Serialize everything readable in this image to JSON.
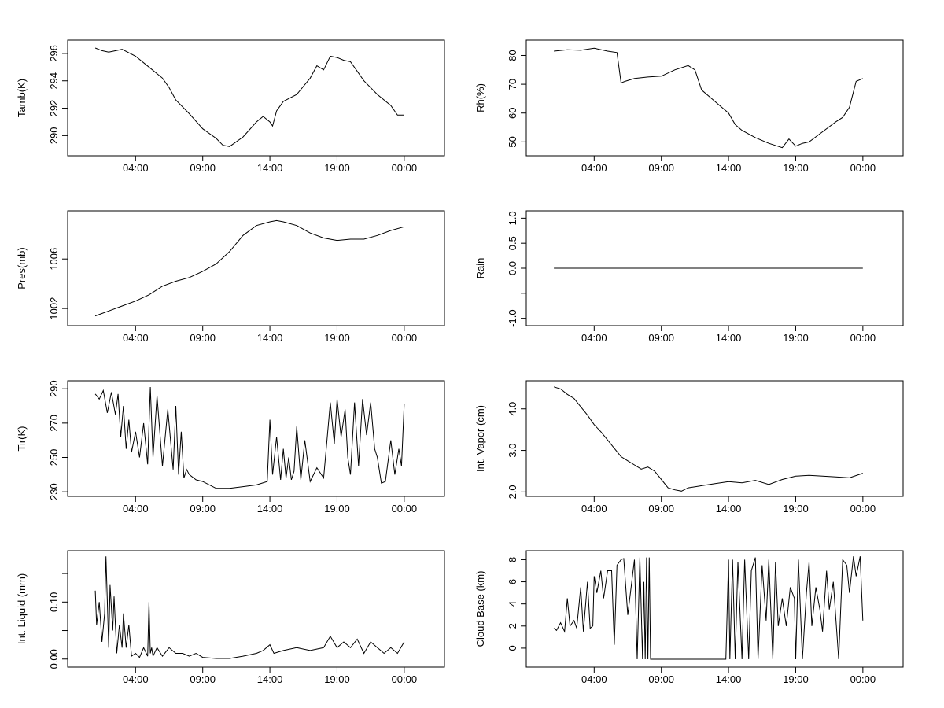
{
  "figure_title": "",
  "chart_data": [
    {
      "type": "line",
      "id": "tamb",
      "ylabel": "Tamb(K)",
      "xlabel": "",
      "xlim": [
        0,
        26
      ],
      "ylim": [
        288.7,
        296.8
      ],
      "yticks": [
        290,
        292,
        294,
        296
      ],
      "ytick_labels": [
        "290",
        "292",
        "294",
        "296"
      ],
      "xticks": [
        4,
        9,
        14,
        19,
        24
      ],
      "xtick_labels": [
        "04:00",
        "09:00",
        "14:00",
        "19:00",
        "00:00"
      ],
      "x": [
        1.0,
        1.5,
        2.0,
        3.0,
        4.0,
        5.0,
        6.0,
        6.5,
        7.0,
        8.0,
        9.0,
        10.0,
        10.5,
        11.0,
        12.0,
        13.0,
        13.5,
        14.0,
        14.2,
        14.5,
        15.0,
        16.0,
        17.0,
        17.5,
        18.0,
        18.5,
        19.0,
        19.5,
        20.0,
        20.5,
        21.0,
        22.0,
        23.0,
        23.5,
        24.0
      ],
      "y": [
        296.4,
        296.2,
        296.1,
        296.3,
        295.8,
        295.0,
        294.2,
        293.5,
        292.6,
        291.6,
        290.5,
        289.8,
        289.3,
        289.2,
        289.9,
        291.0,
        291.4,
        291.0,
        290.7,
        291.8,
        292.5,
        293.0,
        294.2,
        295.1,
        294.8,
        295.8,
        295.7,
        295.5,
        295.4,
        294.7,
        294.0,
        293.0,
        292.2,
        291.5,
        291.5
      ]
    },
    {
      "type": "line",
      "id": "rh",
      "ylabel": "Rh(%)",
      "xlabel": "",
      "xlim": [
        0,
        26
      ],
      "ylim": [
        46.0,
        84.5
      ],
      "yticks": [
        50,
        60,
        70,
        80
      ],
      "ytick_labels": [
        "50",
        "60",
        "70",
        "80"
      ],
      "xticks": [
        4,
        9,
        14,
        19,
        24
      ],
      "xtick_labels": [
        "04:00",
        "09:00",
        "14:00",
        "19:00",
        "00:00"
      ],
      "x": [
        1.0,
        2.0,
        3.0,
        4.0,
        5.0,
        5.7,
        6.0,
        6.3,
        7.0,
        8.0,
        9.0,
        10.0,
        11.0,
        11.5,
        12.0,
        13.0,
        14.0,
        14.5,
        15.0,
        16.0,
        17.0,
        18.0,
        18.5,
        19.0,
        19.5,
        20.0,
        21.0,
        22.0,
        22.5,
        23.0,
        23.5,
        24.0
      ],
      "y": [
        81.5,
        82.0,
        81.8,
        82.5,
        81.5,
        81.0,
        70.5,
        71.0,
        72.0,
        72.5,
        72.8,
        75.0,
        76.5,
        75.0,
        68.0,
        64.0,
        60.0,
        56.0,
        54.0,
        51.5,
        49.5,
        48.0,
        51.0,
        48.5,
        49.5,
        50.0,
        53.5,
        57.0,
        58.5,
        62.0,
        71.0,
        72.0
      ]
    },
    {
      "type": "line",
      "id": "pres",
      "ylabel": "Pres(mb)",
      "xlabel": "",
      "xlim": [
        0,
        26
      ],
      "ylim": [
        1000.8,
        1009.7
      ],
      "yticks": [
        1002,
        1006
      ],
      "ytick_labels": [
        "1002",
        "1006"
      ],
      "xticks": [
        4,
        9,
        14,
        19,
        24
      ],
      "xtick_labels": [
        "04:00",
        "09:00",
        "14:00",
        "19:00",
        "00:00"
      ],
      "x": [
        1.0,
        2.0,
        3.0,
        4.0,
        5.0,
        6.0,
        7.0,
        8.0,
        9.0,
        10.0,
        11.0,
        12.0,
        13.0,
        14.0,
        14.5,
        15.0,
        16.0,
        17.0,
        18.0,
        19.0,
        20.0,
        21.0,
        22.0,
        23.0,
        24.0
      ],
      "y": [
        1001.4,
        1001.8,
        1002.2,
        1002.6,
        1003.1,
        1003.8,
        1004.2,
        1004.5,
        1005.0,
        1005.6,
        1006.6,
        1007.9,
        1008.7,
        1009.0,
        1009.1,
        1009.0,
        1008.7,
        1008.1,
        1007.7,
        1007.5,
        1007.6,
        1007.6,
        1007.9,
        1008.3,
        1008.6
      ]
    },
    {
      "type": "line",
      "id": "rain",
      "ylabel": "Rain",
      "xlabel": "",
      "xlim": [
        0,
        26
      ],
      "ylim": [
        -1.1,
        1.1
      ],
      "yticks": [
        -1.0,
        -0.5,
        0.0,
        0.5,
        1.0
      ],
      "ytick_labels": [
        "-1.0",
        "",
        "0.0",
        "0.5",
        "1.0"
      ],
      "xticks": [
        4,
        9,
        14,
        19,
        24
      ],
      "xtick_labels": [
        "04:00",
        "09:00",
        "14:00",
        "19:00",
        "00:00"
      ],
      "x": [
        1.0,
        24.0
      ],
      "y": [
        0.0,
        0.0
      ]
    },
    {
      "type": "line",
      "id": "tir",
      "ylabel": "Tir(K)",
      "xlabel": "",
      "xlim": [
        0,
        26
      ],
      "ylim": [
        228.7,
        293.3
      ],
      "yticks": [
        230,
        250,
        270,
        290
      ],
      "ytick_labels": [
        "230",
        "250",
        "270",
        "290"
      ],
      "xticks": [
        4,
        9,
        14,
        19,
        24
      ],
      "xtick_labels": [
        "04:00",
        "09:00",
        "14:00",
        "19:00",
        "00:00"
      ],
      "x": [
        1.0,
        1.3,
        1.6,
        1.9,
        2.2,
        2.5,
        2.7,
        2.9,
        3.1,
        3.3,
        3.5,
        3.7,
        4.0,
        4.3,
        4.6,
        4.9,
        5.1,
        5.3,
        5.6,
        6.0,
        6.4,
        6.8,
        7.0,
        7.2,
        7.4,
        7.6,
        7.8,
        8.0,
        8.5,
        9.0,
        10.0,
        11.0,
        12.0,
        13.0,
        13.8,
        14.0,
        14.2,
        14.5,
        14.8,
        15.0,
        15.2,
        15.4,
        15.6,
        15.8,
        16.0,
        16.3,
        16.6,
        17.0,
        17.5,
        18.0,
        18.5,
        18.8,
        19.0,
        19.3,
        19.6,
        19.8,
        20.0,
        20.3,
        20.6,
        20.9,
        21.2,
        21.5,
        21.8,
        22.0,
        22.3,
        22.6,
        23.0,
        23.3,
        23.6,
        23.8,
        24.0
      ],
      "y": [
        287,
        284,
        289,
        276,
        288,
        275,
        287,
        262,
        280,
        255,
        272,
        253,
        265,
        250,
        270,
        246,
        291,
        250,
        286,
        245,
        278,
        243,
        280,
        240,
        265,
        238,
        243,
        240,
        237,
        236,
        232,
        232,
        233,
        234,
        236,
        272,
        240,
        262,
        237,
        255,
        238,
        250,
        237,
        242,
        268,
        237,
        260,
        236,
        244,
        238,
        282,
        258,
        284,
        262,
        278,
        250,
        240,
        282,
        245,
        284,
        263,
        282,
        255,
        250,
        235,
        236,
        260,
        240,
        255,
        245,
        281
      ]
    },
    {
      "type": "line",
      "id": "vapor",
      "ylabel": "Int. Vapor (cm)",
      "xlabel": "",
      "xlim": [
        0,
        26
      ],
      "ylim": [
        1.95,
        4.62
      ],
      "yticks": [
        2.0,
        3.0,
        4.0
      ],
      "ytick_labels": [
        "2.0",
        "3.0",
        "4.0"
      ],
      "xticks": [
        4,
        9,
        14,
        19,
        24
      ],
      "xtick_labels": [
        "04:00",
        "09:00",
        "14:00",
        "19:00",
        "00:00"
      ],
      "x": [
        1.0,
        1.5,
        2.0,
        2.5,
        3.0,
        3.5,
        4.0,
        4.5,
        5.0,
        5.5,
        6.0,
        6.5,
        7.0,
        7.5,
        8.0,
        8.5,
        9.0,
        9.5,
        10.0,
        10.5,
        11.0,
        12.0,
        13.0,
        14.0,
        15.0,
        16.0,
        17.0,
        18.0,
        19.0,
        20.0,
        21.0,
        22.0,
        23.0,
        24.0
      ],
      "y": [
        4.53,
        4.48,
        4.35,
        4.25,
        4.05,
        3.85,
        3.62,
        3.45,
        3.25,
        3.05,
        2.85,
        2.75,
        2.65,
        2.55,
        2.6,
        2.5,
        2.3,
        2.1,
        2.05,
        2.02,
        2.1,
        2.15,
        2.2,
        2.25,
        2.22,
        2.28,
        2.18,
        2.3,
        2.38,
        2.4,
        2.38,
        2.36,
        2.34,
        2.45
      ]
    },
    {
      "type": "line",
      "id": "liquid",
      "ylabel": "Int. Liquid (mm)",
      "xlabel": "",
      "xlim": [
        0,
        26
      ],
      "ylim": [
        -0.01,
        0.186
      ],
      "yticks": [
        0.0,
        0.05,
        0.1,
        0.15
      ],
      "ytick_labels": [
        "0.00",
        "",
        "0.10",
        ""
      ],
      "xticks": [
        4,
        9,
        14,
        19,
        24
      ],
      "xtick_labels": [
        "04:00",
        "09:00",
        "14:00",
        "19:00",
        "00:00"
      ],
      "x": [
        1.0,
        1.1,
        1.3,
        1.5,
        1.7,
        1.8,
        2.0,
        2.1,
        2.3,
        2.4,
        2.6,
        2.8,
        3.0,
        3.1,
        3.3,
        3.5,
        3.7,
        4.0,
        4.3,
        4.6,
        4.9,
        5.0,
        5.1,
        5.2,
        5.3,
        5.6,
        6.0,
        6.5,
        7.0,
        7.5,
        8.0,
        8.5,
        9.0,
        10.0,
        11.0,
        12.0,
        13.0,
        13.5,
        14.0,
        14.3,
        15.0,
        16.0,
        17.0,
        18.0,
        18.5,
        19.0,
        19.5,
        20.0,
        20.5,
        21.0,
        21.5,
        22.0,
        22.5,
        23.0,
        23.5,
        24.0
      ],
      "y": [
        0.12,
        0.06,
        0.1,
        0.03,
        0.08,
        0.18,
        0.02,
        0.13,
        0.05,
        0.11,
        0.01,
        0.06,
        0.02,
        0.08,
        0.02,
        0.06,
        0.005,
        0.01,
        0.003,
        0.02,
        0.005,
        0.1,
        0.01,
        0.02,
        0.005,
        0.02,
        0.005,
        0.02,
        0.01,
        0.01,
        0.005,
        0.01,
        0.003,
        0.001,
        0.001,
        0.005,
        0.01,
        0.015,
        0.025,
        0.01,
        0.015,
        0.02,
        0.015,
        0.02,
        0.04,
        0.02,
        0.03,
        0.02,
        0.035,
        0.01,
        0.03,
        0.02,
        0.01,
        0.02,
        0.01,
        0.03
      ]
    },
    {
      "type": "line",
      "id": "cloudbase",
      "ylabel": "Cloud Base (km)",
      "xlabel": "",
      "xlim": [
        0,
        26
      ],
      "ylim": [
        -1.5,
        8.6
      ],
      "yticks": [
        0,
        2,
        4,
        6,
        8
      ],
      "ytick_labels": [
        "0",
        "2",
        "4",
        "6",
        "8"
      ],
      "xticks": [
        4,
        9,
        14,
        19,
        24
      ],
      "xtick_labels": [
        "04:00",
        "09:00",
        "14:00",
        "19:00",
        "00:00"
      ],
      "x": [
        1.0,
        1.2,
        1.5,
        1.8,
        2.0,
        2.2,
        2.5,
        2.7,
        3.0,
        3.2,
        3.5,
        3.7,
        3.9,
        4.0,
        4.2,
        4.5,
        4.7,
        5.0,
        5.3,
        5.5,
        5.7,
        6.0,
        6.2,
        6.5,
        7.0,
        7.2,
        7.4,
        7.6,
        7.7,
        7.8,
        7.9,
        8.0,
        8.1,
        8.2,
        9.0,
        10.0,
        11.0,
        12.0,
        13.0,
        13.8,
        14.0,
        14.1,
        14.3,
        14.5,
        14.7,
        15.0,
        15.2,
        15.5,
        15.7,
        16.0,
        16.2,
        16.5,
        16.8,
        17.0,
        17.3,
        17.5,
        17.7,
        18.0,
        18.3,
        18.6,
        18.9,
        19.0,
        19.2,
        19.5,
        19.8,
        20.0,
        20.2,
        20.5,
        20.8,
        21.0,
        21.3,
        21.5,
        21.8,
        22.0,
        22.2,
        22.5,
        22.8,
        23.0,
        23.3,
        23.5,
        23.8,
        24.0
      ],
      "y": [
        1.8,
        1.6,
        2.3,
        1.5,
        4.5,
        2.0,
        2.5,
        1.8,
        5.5,
        1.5,
        6.0,
        1.8,
        2.0,
        6.5,
        5.0,
        7.0,
        4.5,
        7.0,
        7.0,
        0.3,
        7.5,
        8.0,
        8.1,
        3.0,
        8.0,
        -1.0,
        8.2,
        -1.0,
        6.0,
        -1.0,
        8.2,
        -1.0,
        8.2,
        -1.0,
        -1.0,
        -1.0,
        -1.0,
        -1.0,
        -1.0,
        -1.0,
        8.0,
        -1.0,
        8.0,
        -1.0,
        7.8,
        -1.0,
        8.0,
        -1.0,
        7.0,
        8.2,
        -1.0,
        7.5,
        2.5,
        8.0,
        -1.0,
        7.8,
        2.0,
        4.5,
        2.0,
        5.5,
        4.5,
        -1.0,
        8.0,
        -1.0,
        5.0,
        7.8,
        2.0,
        5.5,
        3.5,
        1.5,
        7.0,
        3.5,
        6.0,
        2.5,
        -1.0,
        8.0,
        7.5,
        5.0,
        8.3,
        6.5,
        8.3,
        2.5
      ]
    }
  ]
}
